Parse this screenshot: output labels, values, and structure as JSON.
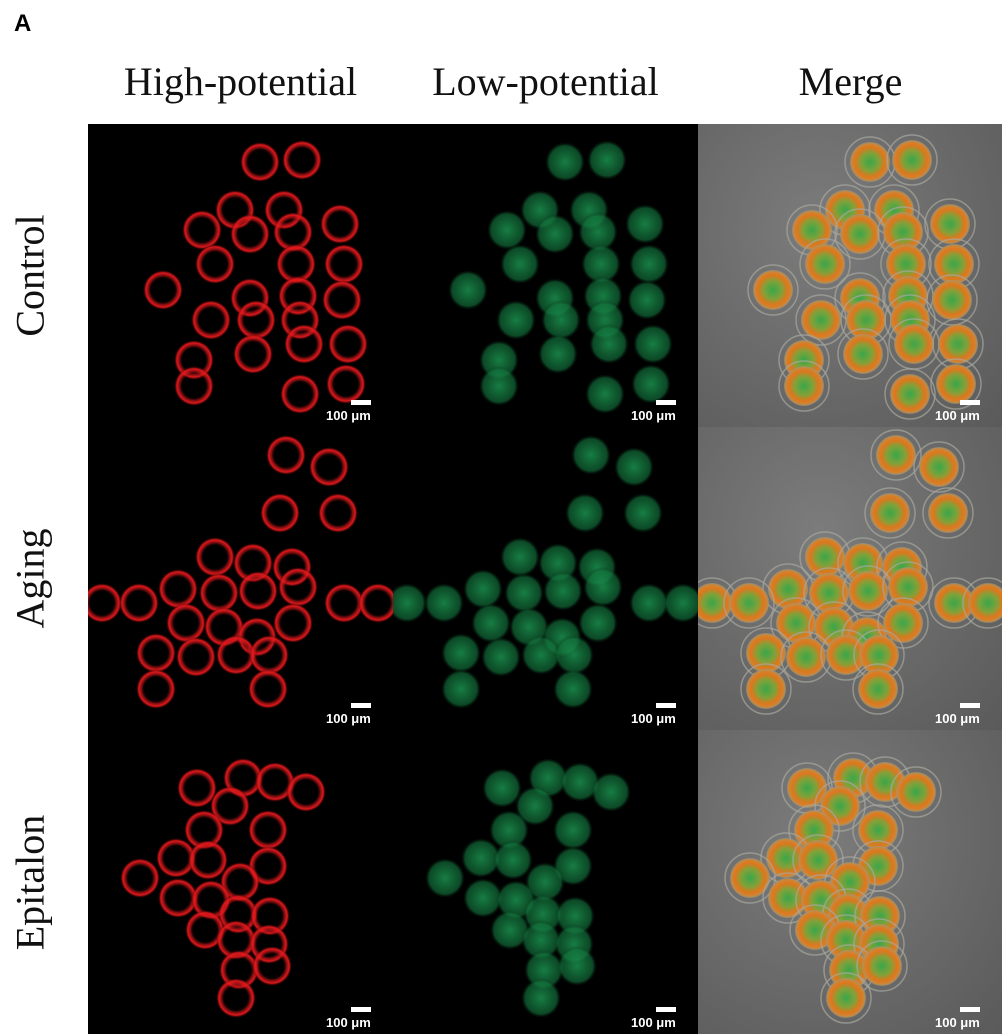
{
  "panel_label": "A",
  "columns": [
    "High-potential",
    "Low-potential",
    "Merge"
  ],
  "rows": [
    "Control",
    "Aging",
    "Epitalon"
  ],
  "scale_bar_label": "100 μm",
  "colors": {
    "high_potential": "#e0181c",
    "low_potential": "#1fa85a",
    "merge_ring": "#e0761c",
    "merge_background": "#6a6a6a"
  }
}
